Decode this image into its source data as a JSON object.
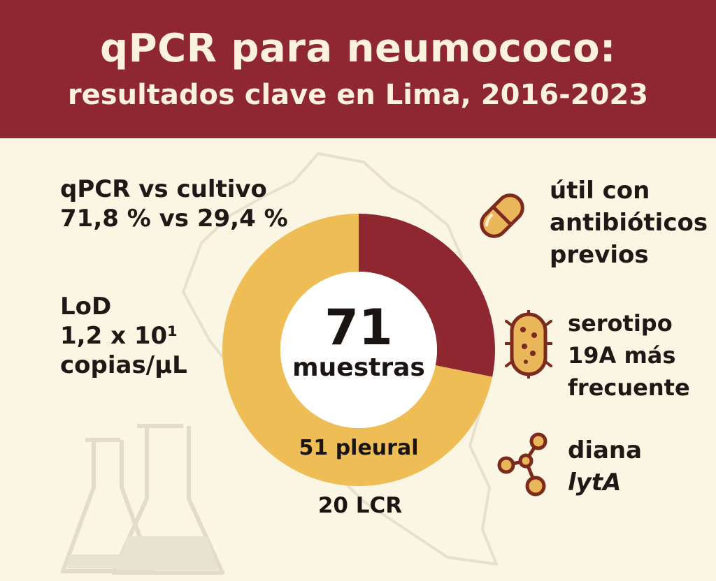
{
  "header": {
    "title": "qPCR para neumococo:",
    "subtitle": "resultados clave en Lima, 2016-2023"
  },
  "stats": {
    "qpcr_line1": "qPCR vs cultivo",
    "qpcr_line2": "71,8 % vs 29,4 %",
    "lod_line1": "LoD",
    "lod_line2": "1,2 x 10¹",
    "lod_line3": "copias/µL"
  },
  "features": {
    "antibiotics_line1": "útil con",
    "antibiotics_line2": "antibióticos",
    "antibiotics_line3": "previos",
    "serotype_line1": "serotipo",
    "serotype_line2": "19A más",
    "serotype_line3": "frecuente",
    "target_line1": "diana",
    "target_line2": "lytA"
  },
  "icons": {
    "antibiotics": "pill-capsule-icon",
    "serotype": "bacteria-icon",
    "target": "molecule-icon",
    "background": [
      "peru-map-outline",
      "flask-icon"
    ]
  },
  "colors": {
    "header": "#8f2731",
    "background": "#fbf5e3",
    "pleural": "#eebd55",
    "lcr": "#8f2731",
    "icon_fill": "#e9b65a",
    "icon_stroke": "#7b2a1d"
  },
  "chart_data": {
    "type": "pie",
    "subtype": "donut",
    "center_value": "71",
    "center_label": "muestras",
    "slices": [
      {
        "name": "pleural",
        "value": 51,
        "label": "51 pleural",
        "color": "#eebd55"
      },
      {
        "name": "LCR",
        "value": 20,
        "label": "20 LCR",
        "color": "#8f2731"
      }
    ],
    "total": 71,
    "start": "top, clockwise from LCR"
  }
}
